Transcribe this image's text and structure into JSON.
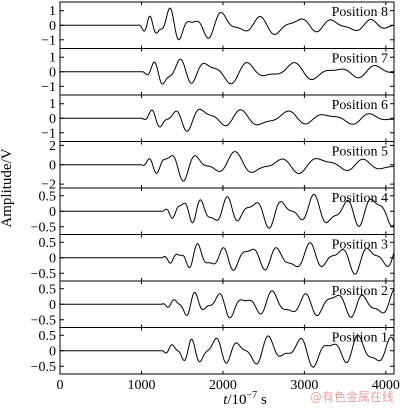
{
  "chart_data": {
    "type": "line",
    "ylabel": "Amplitude/V",
    "xlabel_italic": "t",
    "xlabel_rest": "/10",
    "xlabel_exp": "−7",
    "xlabel_unit": " s",
    "xlim": [
      0,
      4100
    ],
    "xticks": [
      0,
      1000,
      2000,
      3000,
      4000
    ],
    "xtick_labels": [
      "0",
      "1000",
      "2000",
      "3000",
      "4000"
    ],
    "panels": [
      {
        "name": "Position 8",
        "ylim": [
          -1.6,
          1.6
        ],
        "yticks": [
          1,
          0,
          -1
        ],
        "ytick_labels": [
          "1",
          "0",
          "−1"
        ],
        "onset": 950,
        "amp": 1.4,
        "decay": 0.00042,
        "f0": 0.006,
        "f1": 0.0026,
        "seed": 8
      },
      {
        "name": "Position 7",
        "ylim": [
          -1.6,
          1.6
        ],
        "yticks": [
          1,
          0,
          -1
        ],
        "ytick_labels": [
          "1",
          "0",
          "−1"
        ],
        "onset": 1000,
        "amp": 1.25,
        "decay": 0.00036,
        "f0": 0.0048,
        "f1": 0.0022,
        "seed": 7
      },
      {
        "name": "Position 6",
        "ylim": [
          -1.6,
          1.6
        ],
        "yticks": [
          1,
          0,
          -1
        ],
        "ytick_labels": [
          "1",
          "0",
          "−1"
        ],
        "onset": 1000,
        "amp": 1.1,
        "decay": 0.00038,
        "f0": 0.0048,
        "f1": 0.0022,
        "seed": 6
      },
      {
        "name": "Position 5",
        "ylim": [
          -2.4,
          2.4
        ],
        "yticks": [
          2,
          0,
          -2
        ],
        "ytick_labels": [
          "2",
          "0",
          "−2"
        ],
        "onset": 1000,
        "amp": 1.9,
        "decay": 0.00036,
        "f0": 0.0048,
        "f1": 0.0022,
        "seed": 5
      },
      {
        "name": "Position 4",
        "ylim": [
          -0.75,
          0.75
        ],
        "yticks": [
          0.5,
          0,
          -0.5
        ],
        "ytick_labels": [
          "0.5",
          "0",
          "−0.5"
        ],
        "onset": 1250,
        "amp": 0.45,
        "decay": -8e-05,
        "f0": 0.0055,
        "f1": 0.003,
        "seed": 4
      },
      {
        "name": "Position 3",
        "ylim": [
          -0.75,
          0.75
        ],
        "yticks": [
          0.5,
          0,
          -0.5
        ],
        "ytick_labels": [
          "0.5",
          "0",
          "−0.5"
        ],
        "onset": 1250,
        "amp": 0.42,
        "decay": -6e-05,
        "f0": 0.0055,
        "f1": 0.003,
        "seed": 3
      },
      {
        "name": "Position 2",
        "ylim": [
          -0.75,
          0.75
        ],
        "yticks": [
          0.5,
          0,
          -0.5
        ],
        "ytick_labels": [
          "0.5",
          "0",
          "−0.5"
        ],
        "onset": 1250,
        "amp": 0.4,
        "decay": -5e-05,
        "f0": 0.0055,
        "f1": 0.003,
        "seed": 2
      },
      {
        "name": "Position 1",
        "ylim": [
          -0.75,
          0.75
        ],
        "yticks": [
          0.5,
          0,
          -0.5
        ],
        "ytick_labels": [
          "0.5",
          "0",
          "−0.5"
        ],
        "onset": 1250,
        "amp": 0.45,
        "decay": -6e-05,
        "f0": 0.0055,
        "f1": 0.003,
        "seed": 1
      }
    ]
  },
  "watermark": "@有色金属在线"
}
